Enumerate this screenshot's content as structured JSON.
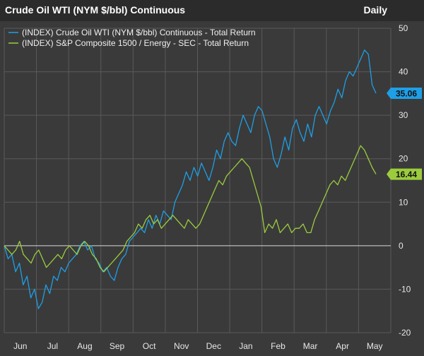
{
  "header": {
    "title": "Crude Oil WTI (NYM $/bbl) Continuous",
    "frequency": "Daily"
  },
  "colors": {
    "background": "#3a3a3a",
    "header": "#2b2b2b",
    "grid": "#5a5a5a",
    "zero_line": "#d9d9d9",
    "oil": "#1e9fe6",
    "energy": "#9ccc3d"
  },
  "chart_data": {
    "type": "line",
    "x_labels": [
      "Jun",
      "Jul",
      "Aug",
      "Sep",
      "Oct",
      "Nov",
      "Dec",
      "Jan",
      "Feb",
      "Mar",
      "Apr",
      "May"
    ],
    "ylim": [
      -20,
      50
    ],
    "y_ticks": [
      50,
      40,
      30,
      20,
      10,
      0,
      -10,
      -20
    ],
    "grid": true,
    "legend_position": "top-left",
    "series": [
      {
        "name": "(INDEX) Crude Oil WTI (NYM $/bbl) Continuous - Total Return",
        "color": "#1e9fe6",
        "last_label": "35.06",
        "values": [
          0,
          -3,
          -2,
          -6,
          -4,
          -9,
          -7,
          -12,
          -10,
          -14.5,
          -13,
          -9,
          -11,
          -7,
          -8,
          -5,
          -6,
          -4,
          -3,
          -2,
          0,
          1,
          -1,
          0,
          -3,
          -4,
          -6,
          -5,
          -7,
          -8,
          -5,
          -3,
          -2,
          1,
          2,
          3,
          4,
          3,
          6,
          4,
          7,
          5,
          8,
          7,
          6,
          10,
          12,
          14,
          17,
          15,
          18,
          16,
          19,
          17,
          15,
          18,
          22,
          20,
          24,
          26,
          24,
          23,
          27,
          30,
          28,
          26,
          30,
          32,
          31,
          28,
          25,
          20,
          18,
          21,
          25,
          22,
          27,
          29,
          26,
          24,
          28,
          25,
          30,
          32,
          30,
          28,
          31,
          33,
          36,
          34,
          38,
          40,
          39,
          41,
          43,
          45,
          44,
          37,
          35.06
        ]
      },
      {
        "name": "(INDEX) S&P Composite 1500 / Energy - SEC - Total Return",
        "color": "#9ccc3d",
        "last_label": "16.44",
        "values": [
          0,
          -1,
          -2,
          -1,
          1,
          -2,
          -3,
          -4,
          -2,
          -1,
          -3,
          -5,
          -4,
          -3,
          -2,
          -3,
          -1,
          0,
          -1,
          -2,
          0,
          1,
          0,
          -2,
          -3,
          -5,
          -6,
          -5,
          -4,
          -3,
          -2,
          -1,
          1,
          2,
          3,
          5,
          4,
          6,
          7,
          5,
          6,
          4,
          5,
          6,
          7,
          6,
          5,
          4,
          6,
          5,
          4,
          5,
          7,
          9,
          11,
          13,
          15,
          14,
          16,
          17,
          18,
          19,
          20,
          19,
          18,
          15,
          12,
          9,
          3,
          5,
          4,
          6,
          3,
          4,
          5,
          3,
          4,
          4,
          5,
          3,
          3,
          6,
          8,
          10,
          12,
          14,
          15,
          14,
          16,
          15,
          17,
          19,
          21,
          23,
          22,
          20,
          18,
          16.44
        ]
      }
    ]
  }
}
